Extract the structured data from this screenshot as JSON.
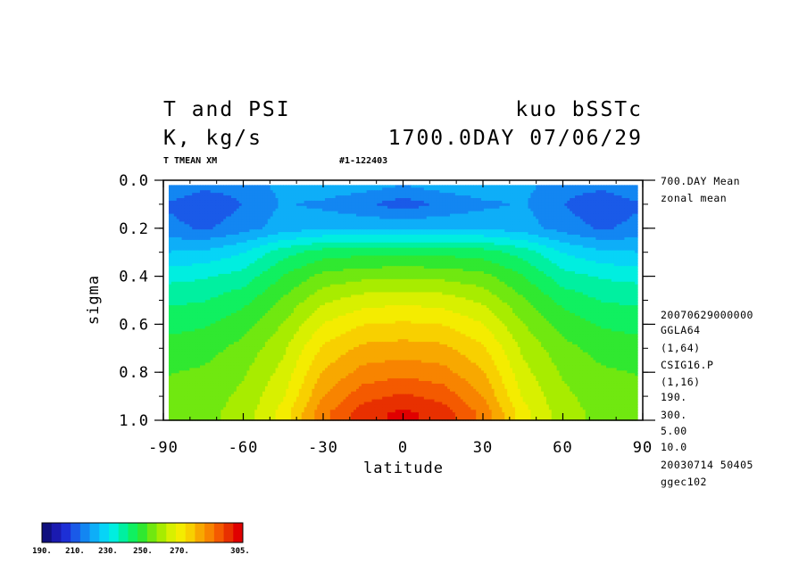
{
  "header": {
    "title_left": "T and PSI",
    "title_right": "kuo bSSTc",
    "units_left": "K, kg/s",
    "time_right": "1700.0DAY 07/06/29",
    "var_label": "T TMEAN XM",
    "run_id": "#1-122403"
  },
  "side_info": [
    "700.DAY Mean",
    "zonal mean",
    "20070629000000",
    "GGLA64",
    "(1,64)",
    "CSIG16.P",
    "(1,16)",
    "190.",
    "300.",
    "5.00",
    "10.0",
    "20030714  50405",
    "ggec102"
  ],
  "colorbar": {
    "labels": [
      "190.",
      "210.",
      "230.",
      "250.",
      "270.",
      "305."
    ],
    "colors": [
      "#10107e",
      "#1a1ab0",
      "#1d2fd6",
      "#1a5ae8",
      "#1386f2",
      "#0eaef8",
      "#07d4f7",
      "#00eee0",
      "#00f0a0",
      "#10f060",
      "#30e830",
      "#70e810",
      "#a8ec00",
      "#d8f000",
      "#f4ec00",
      "#f8d000",
      "#f8a800",
      "#f88400",
      "#f45a00",
      "#e83000",
      "#e00000"
    ]
  },
  "chart_data": {
    "type": "heatmap",
    "xlabel": "latitude",
    "ylabel": "sigma",
    "xlim": [
      -90,
      90
    ],
    "ylim": [
      0.0,
      1.0
    ],
    "y_inverted": true,
    "x_ticks": [
      -90,
      -60,
      -30,
      0,
      30,
      60,
      90
    ],
    "x_tick_labels": [
      "-90",
      "-60",
      "-30",
      "0",
      "30",
      "60",
      "90"
    ],
    "y_ticks": [
      0.0,
      0.2,
      0.4,
      0.6,
      0.8,
      1.0
    ],
    "y_tick_labels": [
      "0.0",
      "0.2",
      "0.4",
      "0.6",
      "0.8",
      "1.0"
    ],
    "z_range": [
      190,
      305
    ],
    "contour_interval": 5,
    "lat": [
      -88,
      -75,
      -60,
      -45,
      -30,
      -15,
      0,
      15,
      30,
      45,
      60,
      75,
      88
    ],
    "sigma": [
      0.03,
      0.1,
      0.2,
      0.3,
      0.4,
      0.5,
      0.6,
      0.7,
      0.8,
      0.9,
      0.97
    ],
    "values": [
      [
        217,
        213,
        214,
        219,
        221,
        219,
        217,
        219,
        221,
        219,
        214,
        213,
        217
      ],
      [
        211,
        207,
        212,
        218,
        216,
        213,
        209,
        213,
        216,
        218,
        212,
        207,
        211
      ],
      [
        214,
        211,
        215,
        220,
        222,
        222,
        222,
        222,
        222,
        220,
        215,
        211,
        214
      ],
      [
        223,
        224,
        228,
        237,
        242,
        243,
        243,
        243,
        242,
        237,
        228,
        224,
        223
      ],
      [
        232,
        233,
        236,
        245,
        252,
        254,
        255,
        254,
        252,
        245,
        236,
        233,
        232
      ],
      [
        238,
        239,
        243,
        251,
        260,
        264,
        265,
        264,
        260,
        251,
        243,
        239,
        238
      ],
      [
        243,
        244,
        248,
        256,
        267,
        272,
        273,
        272,
        267,
        256,
        248,
        244,
        243
      ],
      [
        247,
        248,
        252,
        260,
        273,
        279,
        280,
        279,
        273,
        260,
        252,
        248,
        247
      ],
      [
        250,
        251,
        255,
        263,
        278,
        285,
        287,
        285,
        278,
        263,
        255,
        251,
        250
      ],
      [
        252,
        253,
        257,
        266,
        283,
        292,
        295,
        292,
        283,
        266,
        257,
        253,
        252
      ],
      [
        253,
        254,
        258,
        269,
        287,
        297,
        301,
        297,
        287,
        269,
        258,
        254,
        253
      ]
    ]
  }
}
